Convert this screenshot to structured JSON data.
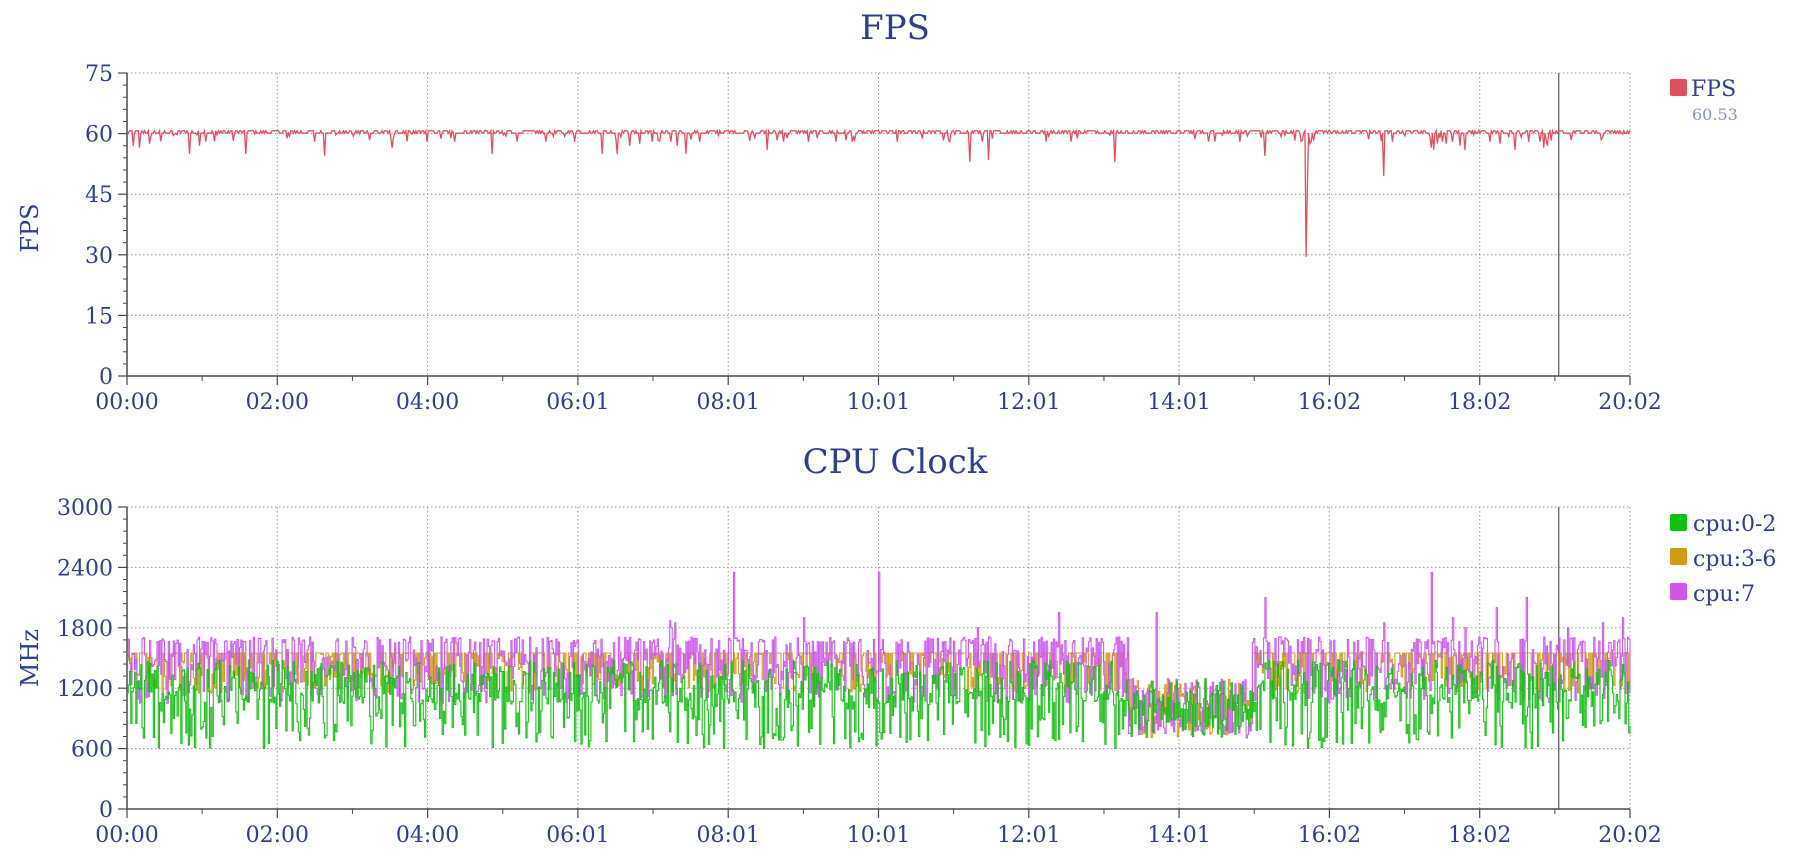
{
  "colors": {
    "text": "#2f3f8f",
    "axis": "#4a4a4a",
    "grid": "#9a9a9a",
    "fps": "#e0505e",
    "cpu_0_2": "#10c010",
    "cpu_3_6": "#d09c10",
    "cpu_7": "#cc55ee",
    "cursor": "#555555"
  },
  "chart_data": [
    {
      "type": "line",
      "title": "FPS",
      "xlabel": "",
      "ylabel": "FPS",
      "ylim": [
        0,
        75
      ],
      "yticks": [
        "0",
        "15",
        "30",
        "45",
        "60",
        "75"
      ],
      "xticks": [
        "00:00",
        "02:00",
        "04:00",
        "06:01",
        "08:01",
        "10:01",
        "12:01",
        "14:01",
        "16:02",
        "18:02",
        "20:02"
      ],
      "x_unit": "minutes since 00:00",
      "xlim": [
        0,
        1202
      ],
      "grid": true,
      "legend_position": "right",
      "cursor_x": 1145,
      "series": [
        {
          "name": "FPS",
          "legend_value": "60.53",
          "baseline": 60.5,
          "dips": [
            [
              5,
              57
            ],
            [
              10,
              56.5
            ],
            [
              18,
              57.5
            ],
            [
              50,
              55
            ],
            [
              58,
              57
            ],
            [
              63,
              58
            ],
            [
              95,
              55
            ],
            [
              150,
              58
            ],
            [
              158,
              54.5
            ],
            [
              212,
              56.5
            ],
            [
              240,
              58
            ],
            [
              262,
              58
            ],
            [
              292,
              55
            ],
            [
              312,
              58
            ],
            [
              335,
              58
            ],
            [
              358,
              58
            ],
            [
              380,
              55
            ],
            [
              392,
              55
            ],
            [
              402,
              57
            ],
            [
              410,
              57.5
            ],
            [
              420,
              58
            ],
            [
              435,
              58
            ],
            [
              440,
              57
            ],
            [
              447,
              55
            ],
            [
              458,
              58
            ],
            [
              512,
              56
            ],
            [
              525,
              58
            ],
            [
              545,
              58
            ],
            [
              567,
              58
            ],
            [
              580,
              58
            ],
            [
              616,
              58
            ],
            [
              658,
              58
            ],
            [
              674,
              53
            ],
            [
              689,
              53.5
            ],
            [
              735,
              58
            ],
            [
              755,
              58
            ],
            [
              790,
              53
            ],
            [
              865,
              58
            ],
            [
              870,
              58
            ],
            [
              890,
              58
            ],
            [
              947,
              58
            ],
            [
              1012,
              58
            ],
            [
              1052,
              58
            ],
            [
              1070,
              56
            ],
            [
              1090,
              58
            ],
            [
              1098,
              57.5
            ],
            [
              1121,
              58
            ],
            [
              1130,
              58
            ],
            [
              1215,
              57
            ],
            [
              1180,
              59
            ],
            [
              1050,
              59
            ],
            [
              1055,
              57.5
            ],
            [
              1060,
              58
            ]
          ],
          "big_dips": [
            [
              910,
              54.5
            ],
            [
              1005,
              49.5
            ],
            [
              1043,
              56.5
            ],
            [
              1045,
              56
            ],
            [
              1048,
              57.5
            ],
            [
              946,
              57.5
            ],
            [
              943,
              29.5
            ],
            [
              944,
              47
            ],
            [
              1066,
              57
            ],
            [
              1110,
              56
            ],
            [
              1133,
              56.5
            ],
            [
              1136,
              57
            ]
          ]
        }
      ]
    },
    {
      "type": "line",
      "title": "CPU Clock",
      "xlabel": "",
      "ylabel": "MHz",
      "ylim": [
        0,
        3000
      ],
      "yticks": [
        "0",
        "600",
        "1200",
        "1800",
        "2400",
        "3000"
      ],
      "xticks": [
        "00:00",
        "02:00",
        "04:00",
        "06:01",
        "08:01",
        "10:01",
        "12:01",
        "14:01",
        "16:02",
        "18:02",
        "20:02"
      ],
      "x_unit": "minutes since 00:00",
      "xlim": [
        0,
        1202
      ],
      "grid": true,
      "legend_position": "right",
      "cursor_x": 1145,
      "series": [
        {
          "name": "cpu:0-2",
          "color_key": "cpu_0_2",
          "min": 550,
          "max": 1480,
          "typical": 1200
        },
        {
          "name": "cpu:3-6",
          "color_key": "cpu_3_6",
          "min": 600,
          "max": 2200,
          "typical": 1400
        },
        {
          "name": "cpu:7",
          "color_key": "cpu_7",
          "min": 700,
          "max": 2350,
          "typical": 1450,
          "spikes": [
            [
              435,
              1800
            ],
            [
              434,
              1950
            ],
            [
              438,
              1850
            ],
            [
              433,
              1600
            ],
            [
              434,
              1870
            ],
            [
              485,
              2350
            ],
            [
              487,
              1700
            ],
            [
              541,
              1900
            ],
            [
              601,
              2350
            ],
            [
              680,
              1800
            ],
            [
              745,
              1950
            ],
            [
              823,
              1950
            ],
            [
              1005,
              1850
            ],
            [
              1043,
              2350
            ],
            [
              1070,
              1800
            ],
            [
              1119,
              2100
            ],
            [
              1152,
              1800
            ],
            [
              1180,
              1850
            ],
            [
              1196,
              1900
            ],
            [
              1095,
              2000
            ],
            [
              1060,
              1900
            ],
            [
              910,
              2100
            ]
          ],
          "low_region": [
            [
              800,
              1000
            ],
            [
              870,
              700
            ],
            [
              900,
              800
            ],
            [
              940,
              700
            ]
          ]
        }
      ]
    }
  ]
}
